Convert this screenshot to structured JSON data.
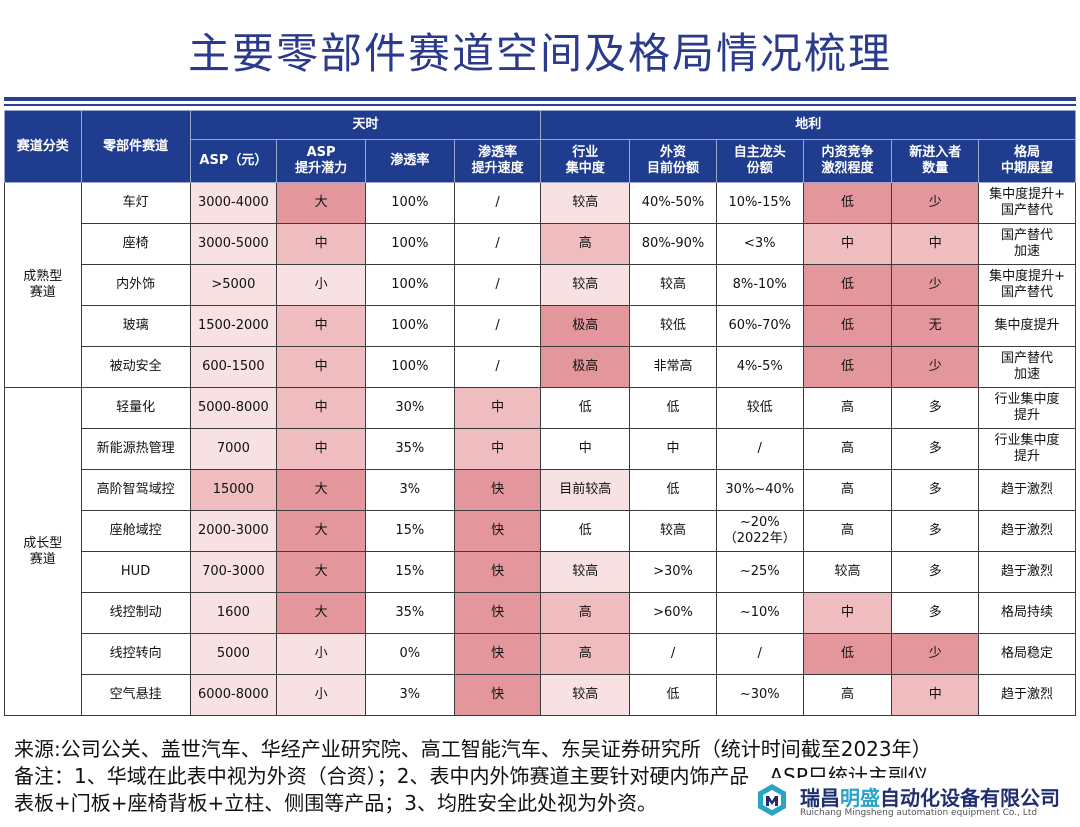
{
  "title": "主要零部件赛道空间及格局情况梳理",
  "header": {
    "category": "赛道分类",
    "track": "零部件赛道",
    "group_tianshi": "天时",
    "group_dili": "地利",
    "columns": [
      [
        "ASP（元）"
      ],
      [
        "ASP",
        "提升潜力"
      ],
      [
        "渗透率"
      ],
      [
        "渗透率",
        "提升速度"
      ],
      [
        "行业",
        "集中度"
      ],
      [
        "外资",
        "目前份额"
      ],
      [
        "自主龙头",
        "份额"
      ],
      [
        "内资竞争",
        "激烈程度"
      ],
      [
        "新进入者",
        "数量"
      ],
      [
        "格局",
        "中期展望"
      ]
    ]
  },
  "groups": [
    {
      "name": [
        "成熟型",
        "赛道"
      ],
      "rows": [
        {
          "track": "车灯",
          "cells": [
            [
              "3000-4000",
              1
            ],
            [
              "大",
              3
            ],
            [
              "100%",
              0
            ],
            [
              "/",
              0
            ],
            [
              "较高",
              1
            ],
            [
              "40%-50%",
              0
            ],
            [
              "10%-15%",
              0
            ],
            [
              "低",
              3
            ],
            [
              "少",
              3
            ],
            [
              [
                "集中度提升+",
                "国产替代"
              ],
              0
            ]
          ]
        },
        {
          "track": "座椅",
          "cells": [
            [
              "3000-5000",
              1
            ],
            [
              "中",
              2
            ],
            [
              "100%",
              0
            ],
            [
              "/",
              0
            ],
            [
              "高",
              2
            ],
            [
              "80%-90%",
              0
            ],
            [
              "<3%",
              0
            ],
            [
              "中",
              2
            ],
            [
              "中",
              2
            ],
            [
              [
                "国产替代",
                "加速"
              ],
              0
            ]
          ]
        },
        {
          "track": "内外饰",
          "cells": [
            [
              ">5000",
              1
            ],
            [
              "小",
              1
            ],
            [
              "100%",
              0
            ],
            [
              "/",
              0
            ],
            [
              "较高",
              1
            ],
            [
              "较高",
              0
            ],
            [
              "8%-10%",
              0
            ],
            [
              "低",
              3
            ],
            [
              "少",
              3
            ],
            [
              [
                "集中度提升+",
                "国产替代"
              ],
              0
            ]
          ]
        },
        {
          "track": "玻璃",
          "cells": [
            [
              "1500-2000",
              1
            ],
            [
              "中",
              2
            ],
            [
              "100%",
              0
            ],
            [
              "/",
              0
            ],
            [
              "极高",
              3
            ],
            [
              "较低",
              0
            ],
            [
              "60%-70%",
              0
            ],
            [
              "低",
              3
            ],
            [
              "无",
              3
            ],
            [
              [
                "集中度提升"
              ],
              0
            ]
          ]
        },
        {
          "track": "被动安全",
          "cells": [
            [
              "600-1500",
              1
            ],
            [
              "中",
              2
            ],
            [
              "100%",
              0
            ],
            [
              "/",
              0
            ],
            [
              "极高",
              3
            ],
            [
              "非常高",
              0
            ],
            [
              "4%-5%",
              0
            ],
            [
              "低",
              3
            ],
            [
              "少",
              3
            ],
            [
              [
                "国产替代",
                "加速"
              ],
              0
            ]
          ]
        }
      ]
    },
    {
      "name": [
        "成长型",
        "赛道"
      ],
      "rows": [
        {
          "track": "轻量化",
          "cells": [
            [
              "5000-8000",
              1
            ],
            [
              "中",
              2
            ],
            [
              "30%",
              0
            ],
            [
              "中",
              2
            ],
            [
              "低",
              0
            ],
            [
              "低",
              0
            ],
            [
              "较低",
              0
            ],
            [
              "高",
              0
            ],
            [
              "多",
              0
            ],
            [
              [
                "行业集中度",
                "提升"
              ],
              0
            ]
          ]
        },
        {
          "track": "新能源热管理",
          "cells": [
            [
              "7000",
              1
            ],
            [
              "中",
              2
            ],
            [
              "35%",
              0
            ],
            [
              "中",
              2
            ],
            [
              "中",
              0
            ],
            [
              "中",
              0
            ],
            [
              "/",
              0
            ],
            [
              "高",
              0
            ],
            [
              "多",
              0
            ],
            [
              [
                "行业集中度",
                "提升"
              ],
              0
            ]
          ]
        },
        {
          "track": "高阶智驾域控",
          "cells": [
            [
              "15000",
              2
            ],
            [
              "大",
              3
            ],
            [
              "3%",
              0
            ],
            [
              "快",
              3
            ],
            [
              "目前较高",
              1
            ],
            [
              "低",
              0
            ],
            [
              "30%~40%",
              0
            ],
            [
              "高",
              0
            ],
            [
              "多",
              0
            ],
            [
              [
                "趋于激烈"
              ],
              0
            ]
          ]
        },
        {
          "track": "座舱域控",
          "cells": [
            [
              "2000-3000",
              1
            ],
            [
              "大",
              3
            ],
            [
              "15%",
              0
            ],
            [
              "快",
              3
            ],
            [
              "低",
              0
            ],
            [
              "较高",
              0
            ],
            [
              [
                "~20%",
                "（2022年）"
              ],
              0
            ],
            [
              "高",
              0
            ],
            [
              "多",
              0
            ],
            [
              [
                "趋于激烈"
              ],
              0
            ]
          ]
        },
        {
          "track": "HUD",
          "cells": [
            [
              "700-3000",
              1
            ],
            [
              "大",
              3
            ],
            [
              "15%",
              0
            ],
            [
              "快",
              3
            ],
            [
              "较高",
              1
            ],
            [
              ">30%",
              0
            ],
            [
              "~25%",
              0
            ],
            [
              "较高",
              0
            ],
            [
              "多",
              0
            ],
            [
              [
                "趋于激烈"
              ],
              0
            ]
          ]
        },
        {
          "track": "线控制动",
          "cells": [
            [
              "1600",
              1
            ],
            [
              "大",
              3
            ],
            [
              "35%",
              0
            ],
            [
              "快",
              3
            ],
            [
              "高",
              2
            ],
            [
              ">60%",
              0
            ],
            [
              "~10%",
              0
            ],
            [
              "中",
              2
            ],
            [
              "多",
              0
            ],
            [
              [
                "格局持续"
              ],
              0
            ]
          ]
        },
        {
          "track": "线控转向",
          "cells": [
            [
              "5000",
              1
            ],
            [
              "小",
              1
            ],
            [
              "0%",
              0
            ],
            [
              "快",
              3
            ],
            [
              "高",
              2
            ],
            [
              "/",
              0
            ],
            [
              "/",
              0
            ],
            [
              "低",
              3
            ],
            [
              "少",
              3
            ],
            [
              [
                "格局稳定"
              ],
              0
            ]
          ]
        },
        {
          "track": "空气悬挂",
          "cells": [
            [
              "6000-8000",
              1
            ],
            [
              "小",
              1
            ],
            [
              "3%",
              0
            ],
            [
              "快",
              3
            ],
            [
              "较高",
              1
            ],
            [
              "低",
              0
            ],
            [
              "~30%",
              0
            ],
            [
              "高",
              0
            ],
            [
              "中",
              2
            ],
            [
              [
                "趋于激烈"
              ],
              0
            ]
          ]
        }
      ]
    }
  ],
  "footer": {
    "source": "来源:公司公关、盖世汽车、华经产业研究院、高工智能汽车、东吴证券研究所（统计时间截至2023年）",
    "note1": "备注：1、华域在此表中视为外资（合资）；2、表中内外饰赛道主要针对硬内饰产品，ASP只统计主副仪",
    "note2": "表板+门板+座椅背板+立柱、侧围等产品；3、均胜安全此处视为外资。"
  },
  "logo": {
    "name_pre": "瑞昌",
    "name_hl": "明盛",
    "name_post": "自动化设备有限公司",
    "name_en": "Ruichang Mingsheng automation equipment Co., Ltd",
    "icon": "cube-logo-icon",
    "accent": "#2aa3c8"
  }
}
